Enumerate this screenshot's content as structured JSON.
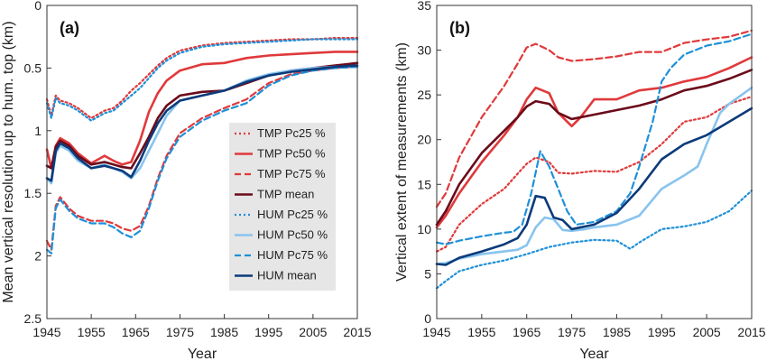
{
  "colors": {
    "tmp_light": "#e0393b",
    "tmp_mean": "#6b0a1a",
    "hum_light": "#1e90d8",
    "hum_pc50": "#88c4ee",
    "hum_mean": "#0c3a7a",
    "legend_bg": "#e6e6e6"
  },
  "chart_data": [
    {
      "type": "line",
      "title": "(a)",
      "xlabel": "Year",
      "ylabel": "Mean vertical resolution up to hum. top (km)",
      "xlim": [
        1945,
        2015
      ],
      "ylim": [
        0,
        2.5
      ],
      "y_inverted": true,
      "xticks": [
        "1945",
        "1955",
        "1965",
        "1975",
        "1985",
        "1995",
        "2005",
        "2015"
      ],
      "yticks": [
        "0",
        "0.5",
        "1",
        "1.5",
        "2",
        "2.5"
      ],
      "legend_position": "right-center",
      "series": [
        {
          "name": "TMP Pc25 %",
          "color_key": "tmp_light",
          "dash": "dot",
          "x": [
            1945,
            1946,
            1947,
            1948,
            1950,
            1952,
            1955,
            1958,
            1960,
            1962,
            1964,
            1966,
            1968,
            1970,
            1972,
            1975,
            1980,
            1985,
            1990,
            1995,
            2000,
            2005,
            2010,
            2015
          ],
          "y": [
            0.75,
            0.88,
            0.72,
            0.76,
            0.78,
            0.82,
            0.9,
            0.84,
            0.82,
            0.76,
            0.68,
            0.62,
            0.55,
            0.48,
            0.42,
            0.36,
            0.32,
            0.3,
            0.29,
            0.28,
            0.27,
            0.27,
            0.26,
            0.26
          ]
        },
        {
          "name": "TMP Pc50 %",
          "color_key": "tmp_light",
          "dash": "solid",
          "x": [
            1945,
            1946,
            1947,
            1948,
            1950,
            1952,
            1955,
            1958,
            1960,
            1962,
            1964,
            1966,
            1968,
            1970,
            1972,
            1975,
            1980,
            1985,
            1990,
            1995,
            2000,
            2005,
            2010,
            2015
          ],
          "y": [
            1.15,
            1.3,
            1.12,
            1.06,
            1.1,
            1.18,
            1.26,
            1.2,
            1.24,
            1.27,
            1.25,
            1.08,
            0.85,
            0.7,
            0.6,
            0.52,
            0.47,
            0.46,
            0.42,
            0.4,
            0.39,
            0.38,
            0.37,
            0.37
          ]
        },
        {
          "name": "TMP Pc75 %",
          "color_key": "tmp_light",
          "dash": "dash",
          "x": [
            1945,
            1946,
            1947,
            1948,
            1950,
            1952,
            1955,
            1958,
            1960,
            1962,
            1964,
            1966,
            1968,
            1970,
            1972,
            1975,
            1980,
            1985,
            1990,
            1995,
            2000,
            2005,
            2010,
            2015
          ],
          "y": [
            1.88,
            1.95,
            1.6,
            1.53,
            1.62,
            1.68,
            1.72,
            1.72,
            1.74,
            1.78,
            1.8,
            1.76,
            1.6,
            1.38,
            1.2,
            1.02,
            0.9,
            0.82,
            0.75,
            0.62,
            0.55,
            0.52,
            0.5,
            0.49
          ]
        },
        {
          "name": "TMP mean",
          "color_key": "tmp_mean",
          "dash": "solid",
          "x": [
            1945,
            1946,
            1947,
            1948,
            1950,
            1952,
            1955,
            1958,
            1960,
            1962,
            1964,
            1966,
            1968,
            1970,
            1972,
            1975,
            1980,
            1985,
            1990,
            1995,
            2000,
            2005,
            2010,
            2015
          ],
          "y": [
            1.28,
            1.3,
            1.13,
            1.08,
            1.12,
            1.2,
            1.27,
            1.25,
            1.27,
            1.29,
            1.3,
            1.18,
            1.05,
            0.9,
            0.8,
            0.72,
            0.69,
            0.68,
            0.62,
            0.56,
            0.52,
            0.5,
            0.48,
            0.46
          ]
        },
        {
          "name": "HUM Pc25 %",
          "color_key": "hum_light",
          "dash": "dot",
          "x": [
            1945,
            1946,
            1947,
            1948,
            1950,
            1952,
            1955,
            1958,
            1960,
            1962,
            1964,
            1966,
            1968,
            1970,
            1972,
            1975,
            1980,
            1985,
            1990,
            1995,
            2000,
            2005,
            2010,
            2015
          ],
          "y": [
            0.78,
            0.9,
            0.74,
            0.78,
            0.8,
            0.84,
            0.92,
            0.86,
            0.84,
            0.78,
            0.72,
            0.66,
            0.58,
            0.5,
            0.44,
            0.38,
            0.33,
            0.31,
            0.3,
            0.29,
            0.28,
            0.27,
            0.27,
            0.27
          ]
        },
        {
          "name": "HUM Pc50 %",
          "color_key": "hum_pc50",
          "dash": "solid",
          "x": [
            1945,
            1946,
            1947,
            1948,
            1950,
            1952,
            1955,
            1958,
            1960,
            1962,
            1964,
            1966,
            1968,
            1970,
            1972,
            1975,
            1980,
            1985,
            1990,
            1995,
            2000,
            2005,
            2010,
            2015
          ],
          "y": [
            1.38,
            1.42,
            1.18,
            1.12,
            1.16,
            1.24,
            1.3,
            1.27,
            1.3,
            1.33,
            1.38,
            1.3,
            1.16,
            1.02,
            0.88,
            0.76,
            0.72,
            0.68,
            0.6,
            0.55,
            0.52,
            0.5,
            0.49,
            0.49
          ]
        },
        {
          "name": "HUM Pc75 %",
          "color_key": "hum_light",
          "dash": "dash",
          "x": [
            1945,
            1946,
            1947,
            1948,
            1950,
            1952,
            1955,
            1958,
            1960,
            1962,
            1964,
            1966,
            1968,
            1970,
            1972,
            1975,
            1980,
            1985,
            1990,
            1995,
            2000,
            2005,
            2010,
            2015
          ],
          "y": [
            1.95,
            1.98,
            1.62,
            1.55,
            1.64,
            1.7,
            1.74,
            1.74,
            1.77,
            1.82,
            1.85,
            1.8,
            1.62,
            1.4,
            1.22,
            1.05,
            0.92,
            0.84,
            0.78,
            0.64,
            0.56,
            0.52,
            0.5,
            0.49
          ]
        },
        {
          "name": "HUM mean",
          "color_key": "hum_mean",
          "dash": "solid",
          "x": [
            1945,
            1946,
            1947,
            1948,
            1950,
            1952,
            1955,
            1958,
            1960,
            1962,
            1964,
            1966,
            1968,
            1970,
            1972,
            1975,
            1980,
            1985,
            1990,
            1995,
            2000,
            2005,
            2010,
            2015
          ],
          "y": [
            1.38,
            1.4,
            1.16,
            1.1,
            1.14,
            1.22,
            1.3,
            1.28,
            1.3,
            1.32,
            1.37,
            1.24,
            1.08,
            0.94,
            0.84,
            0.76,
            0.72,
            0.68,
            0.61,
            0.56,
            0.53,
            0.51,
            0.49,
            0.48
          ]
        }
      ]
    },
    {
      "type": "line",
      "title": "(b)",
      "xlabel": "Year",
      "ylabel": "Vertical extent of measurements (km)",
      "xlim": [
        1945,
        2015
      ],
      "ylim": [
        0,
        35
      ],
      "xticks": [
        "1945",
        "1955",
        "1965",
        "1975",
        "1985",
        "1995",
        "2005",
        "2015"
      ],
      "yticks": [
        "0",
        "5",
        "10",
        "15",
        "20",
        "25",
        "30",
        "35"
      ],
      "series": [
        {
          "name": "TMP Pc25 %",
          "color_key": "tmp_light",
          "dash": "dot",
          "x": [
            1945,
            1947,
            1950,
            1955,
            1960,
            1963,
            1965,
            1967,
            1970,
            1972,
            1975,
            1980,
            1985,
            1990,
            1995,
            2000,
            2005,
            2010,
            2015
          ],
          "y": [
            7.5,
            8,
            10.5,
            12.8,
            14.5,
            16.2,
            17.3,
            18,
            17.5,
            16.3,
            16.2,
            16.5,
            16.4,
            17.5,
            19.5,
            22,
            22.5,
            24,
            24.8
          ]
        },
        {
          "name": "TMP Pc50 %",
          "color_key": "tmp_light",
          "dash": "solid",
          "x": [
            1945,
            1947,
            1950,
            1955,
            1960,
            1963,
            1965,
            1967,
            1970,
            1972,
            1975,
            1977,
            1980,
            1985,
            1990,
            1995,
            2000,
            2005,
            2010,
            2015
          ],
          "y": [
            10.2,
            11.5,
            14,
            17.5,
            20.5,
            22.5,
            24.5,
            25.8,
            25.2,
            23,
            21.5,
            22.5,
            24.5,
            24.5,
            25.5,
            25.8,
            26.5,
            27,
            28,
            29.2
          ]
        },
        {
          "name": "TMP Pc75 %",
          "color_key": "tmp_light",
          "dash": "dash",
          "x": [
            1945,
            1947,
            1950,
            1955,
            1960,
            1963,
            1965,
            1967,
            1970,
            1972,
            1975,
            1980,
            1985,
            1990,
            1995,
            2000,
            2005,
            2010,
            2015
          ],
          "y": [
            12.5,
            14,
            18,
            22.5,
            26,
            28.5,
            30.3,
            30.7,
            30,
            29.2,
            28.8,
            29,
            29.3,
            29.8,
            29.8,
            30.8,
            31.2,
            31.5,
            32.2
          ]
        },
        {
          "name": "TMP mean",
          "color_key": "tmp_mean",
          "dash": "solid",
          "x": [
            1945,
            1947,
            1950,
            1955,
            1960,
            1963,
            1965,
            1967,
            1970,
            1972,
            1975,
            1980,
            1985,
            1990,
            1995,
            2000,
            2005,
            2010,
            2015
          ],
          "y": [
            10.5,
            12,
            15,
            18.5,
            21,
            22.5,
            23.7,
            24.3,
            24,
            23,
            22.3,
            22.8,
            23.3,
            23.8,
            24.5,
            25.5,
            26,
            26.8,
            27.8
          ]
        },
        {
          "name": "HUM Pc25 %",
          "color_key": "hum_light",
          "dash": "dot",
          "x": [
            1945,
            1947,
            1950,
            1955,
            1960,
            1965,
            1970,
            1975,
            1980,
            1985,
            1988,
            1990,
            1995,
            2000,
            2005,
            2010,
            2015
          ],
          "y": [
            3.4,
            4.2,
            5.3,
            6,
            6.5,
            7.2,
            8,
            8.5,
            8.8,
            8.7,
            7.8,
            8.5,
            10,
            10.3,
            10.8,
            12,
            14.3
          ]
        },
        {
          "name": "HUM Pc50 %",
          "color_key": "hum_pc50",
          "dash": "solid",
          "x": [
            1945,
            1947,
            1950,
            1955,
            1960,
            1963,
            1965,
            1967,
            1969,
            1971,
            1973,
            1975,
            1978,
            1980,
            1985,
            1990,
            1995,
            2000,
            2003,
            2005,
            2008,
            2010,
            2015
          ],
          "y": [
            6.1,
            6.2,
            6.7,
            7.2,
            7.5,
            7.7,
            8.2,
            10.2,
            11.3,
            11.1,
            9.9,
            9.8,
            10,
            10.2,
            10.5,
            11.5,
            14.5,
            16,
            17,
            19.5,
            23,
            24,
            25.8
          ]
        },
        {
          "name": "HUM Pc75 %",
          "color_key": "hum_light",
          "dash": "dash",
          "x": [
            1945,
            1947,
            1950,
            1955,
            1960,
            1962,
            1964,
            1966,
            1968,
            1970,
            1972,
            1974,
            1976,
            1980,
            1985,
            1988,
            1990,
            1993,
            1995,
            1997,
            2000,
            2005,
            2010,
            2015
          ],
          "y": [
            8.5,
            8.3,
            8.7,
            9.2,
            9.6,
            9.7,
            10.5,
            14,
            18.7,
            17,
            14.5,
            12,
            10.5,
            10.8,
            12,
            14,
            17,
            22,
            26.5,
            28,
            29.5,
            30.5,
            31,
            31.8
          ]
        },
        {
          "name": "HUM mean",
          "color_key": "hum_mean",
          "dash": "solid",
          "x": [
            1945,
            1947,
            1950,
            1955,
            1960,
            1963,
            1965,
            1967,
            1969,
            1971,
            1973,
            1975,
            1980,
            1985,
            1990,
            1995,
            2000,
            2005,
            2010,
            2015
          ],
          "y": [
            6.1,
            6,
            6.8,
            7.5,
            8.3,
            9,
            10.5,
            13.7,
            13.5,
            11.3,
            11,
            10,
            10.5,
            11.8,
            14.5,
            17.8,
            19.5,
            20.5,
            22,
            23.5
          ]
        }
      ]
    }
  ]
}
